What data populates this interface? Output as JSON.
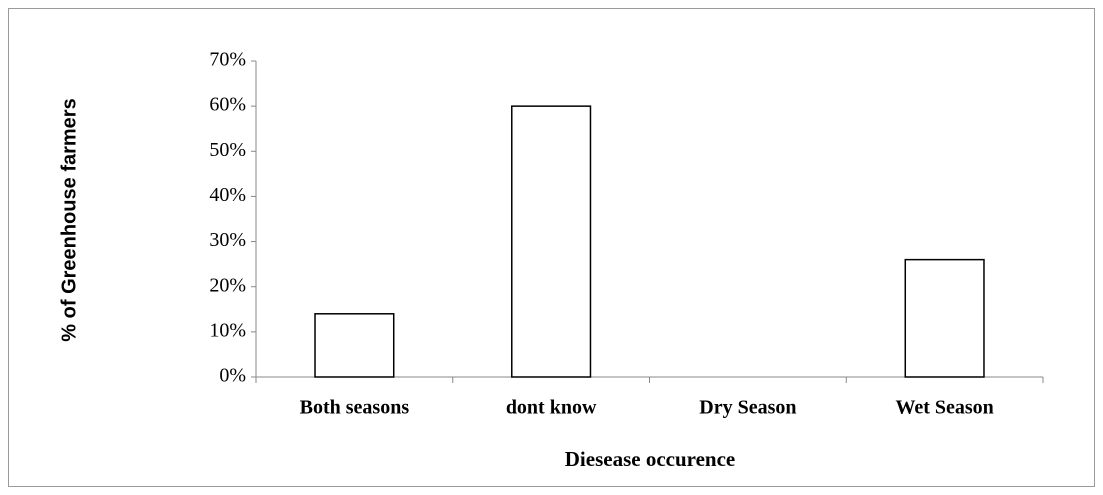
{
  "chart_data": {
    "type": "bar",
    "x_label": "Diesease occurence",
    "y_label": "% of  Greenhouse farmers",
    "categories": [
      "Both seasons",
      "dont know",
      "Dry Season",
      "Wet Season"
    ],
    "values": [
      14,
      60,
      0,
      26
    ],
    "color": "#ffffff",
    "ylim": [
      0,
      70
    ],
    "yticks": [
      {
        "value": 0,
        "label": "0%"
      },
      {
        "value": 10,
        "label": "10%"
      },
      {
        "value": 20,
        "label": "20%"
      },
      {
        "value": 30,
        "label": "30%"
      },
      {
        "value": 40,
        "label": "40%"
      },
      {
        "value": 50,
        "label": "50%"
      },
      {
        "value": 60,
        "label": "60%"
      },
      {
        "value": 70,
        "label": "70%"
      }
    ],
    "grid": false
  }
}
